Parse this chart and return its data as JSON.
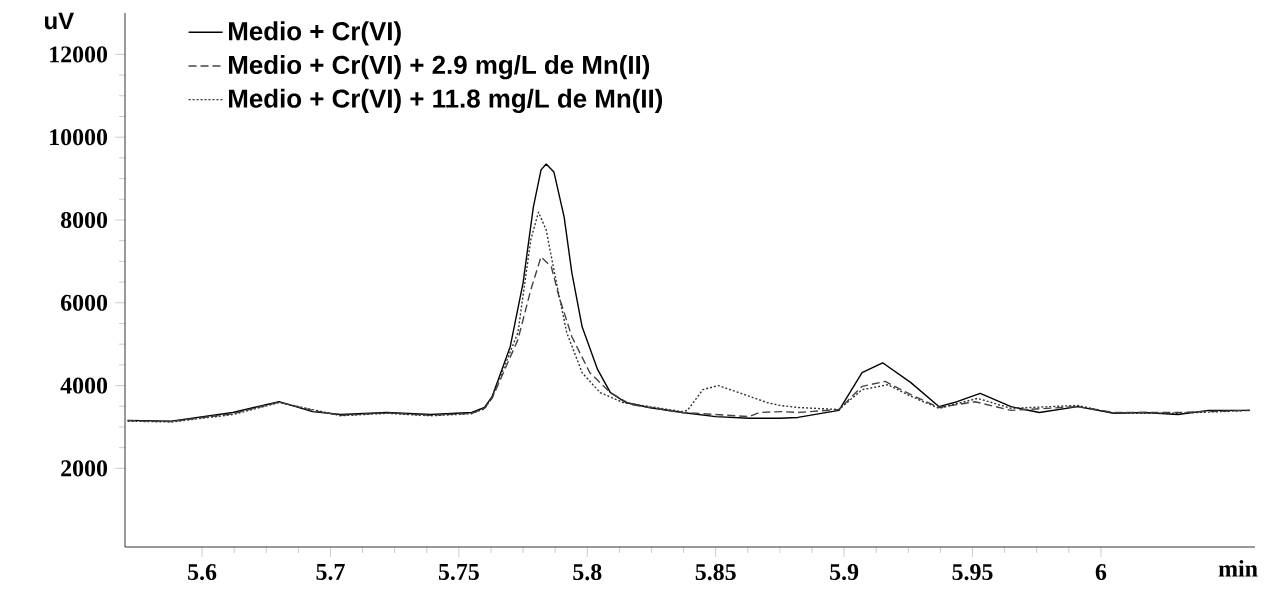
{
  "chart_data": {
    "type": "line",
    "xlabel": "min",
    "ylabel": "uV",
    "xlim": [
      5.62,
      6.06
    ],
    "ylim": [
      100,
      13000
    ],
    "xticks": [
      {
        "value": 5.65,
        "label": "5.6"
      },
      {
        "value": 5.7,
        "label": "5.7"
      },
      {
        "value": 5.75,
        "label": "5.75"
      },
      {
        "value": 5.8,
        "label": "5.8"
      },
      {
        "value": 5.85,
        "label": "5.85"
      },
      {
        "value": 5.9,
        "label": "5.9"
      },
      {
        "value": 5.95,
        "label": "5.95"
      },
      {
        "value": 6,
        "label": "6"
      }
    ],
    "yticks": [
      2000,
      4000,
      6000,
      8000,
      10000,
      12000
    ],
    "grid": false,
    "legend": "top left",
    "marker": "none",
    "series": [
      {
        "name": "Medio + Cr(VI)",
        "color": "#000000",
        "line_style": "solid",
        "x": [
          5.621,
          5.638,
          5.662,
          5.68,
          5.693,
          5.704,
          5.722,
          5.739,
          5.755,
          5.76,
          5.763,
          5.77,
          5.775,
          5.779,
          5.782,
          5.784,
          5.787,
          5.791,
          5.794,
          5.798,
          5.804,
          5.809,
          5.815,
          5.824,
          5.837,
          5.85,
          5.863,
          5.875,
          5.882,
          5.898,
          5.907,
          5.915,
          5.926,
          5.937,
          5.944,
          5.953,
          5.965,
          5.976,
          5.991,
          6.005,
          6.017,
          6.03,
          6.042,
          6.058
        ],
        "values": [
          3160,
          3140,
          3350,
          3610,
          3370,
          3300,
          3350,
          3300,
          3350,
          3470,
          3740,
          4940,
          6480,
          8310,
          9210,
          9350,
          9160,
          8070,
          6720,
          5420,
          4390,
          3830,
          3590,
          3470,
          3350,
          3250,
          3210,
          3210,
          3230,
          3400,
          4310,
          4550,
          4070,
          3490,
          3610,
          3810,
          3490,
          3350,
          3490,
          3330,
          3350,
          3300,
          3400,
          3400
        ]
      },
      {
        "name": "Medio + Cr(VI) + 2.9 mg/L de Mn(II)",
        "color": "#444444",
        "line_style": "dashed",
        "x": [
          5.621,
          5.638,
          5.662,
          5.68,
          5.693,
          5.704,
          5.722,
          5.739,
          5.755,
          5.76,
          5.763,
          5.773,
          5.778,
          5.782,
          5.786,
          5.789,
          5.794,
          5.801,
          5.809,
          5.817,
          5.837,
          5.863,
          5.867,
          5.876,
          5.882,
          5.898,
          5.907,
          5.916,
          5.926,
          5.937,
          5.951,
          5.965,
          5.991,
          6.005,
          6.03,
          6.058
        ],
        "values": [
          3150,
          3130,
          3320,
          3600,
          3400,
          3280,
          3340,
          3280,
          3330,
          3450,
          3700,
          5110,
          6310,
          7110,
          6870,
          6150,
          5180,
          4310,
          3830,
          3540,
          3350,
          3250,
          3350,
          3370,
          3350,
          3420,
          3980,
          4100,
          3780,
          3470,
          3610,
          3400,
          3490,
          3350,
          3350,
          3400
        ]
      },
      {
        "name": "Medio + Cr(VI) + 11.8 mg/L de Mn(II)",
        "color": "#333333",
        "line_style": "dotted",
        "x": [
          5.621,
          5.638,
          5.662,
          5.68,
          5.693,
          5.704,
          5.722,
          5.739,
          5.755,
          5.76,
          5.763,
          5.773,
          5.778,
          5.781,
          5.784,
          5.788,
          5.792,
          5.798,
          5.805,
          5.814,
          5.837,
          5.839,
          5.845,
          5.851,
          5.859,
          5.87,
          5.875,
          5.882,
          5.898,
          5.907,
          5.917,
          5.926,
          5.937,
          5.952,
          5.965,
          5.991,
          6.005,
          6.03,
          6.058
        ],
        "values": [
          3140,
          3120,
          3300,
          3590,
          3420,
          3270,
          3330,
          3270,
          3320,
          3440,
          3720,
          5280,
          7520,
          8190,
          7760,
          6480,
          5280,
          4310,
          3830,
          3590,
          3370,
          3400,
          3900,
          4000,
          3830,
          3590,
          3520,
          3470,
          3420,
          3900,
          4020,
          3740,
          3450,
          3690,
          3450,
          3520,
          3330,
          3330,
          3400
        ]
      }
    ]
  }
}
